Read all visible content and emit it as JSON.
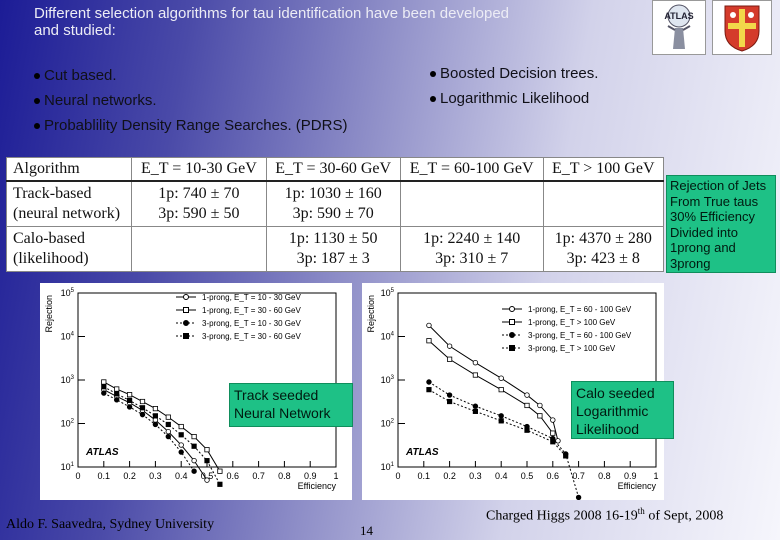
{
  "intro": "Different selection algorithms for tau identification have been developed\nand studied:",
  "bullets_left": [
    "Cut based.",
    "Neural networks.",
    "Probablility Density Range Searches. (PDRS)"
  ],
  "bullets_right": [
    "Boosted Decision trees.",
    "Logarithmic Likelihood"
  ],
  "logos": {
    "atlas_text": "ATLAS"
  },
  "table": {
    "headers": [
      "Algorithm",
      "E_T = 10-30 GeV",
      "E_T = 30-60 GeV",
      "E_T = 60-100 GeV",
      "E_T > 100 GeV"
    ],
    "track_label_1": "Track-based",
    "track_label_2": "(neural network)",
    "track_c1": "1p: 740 ± 70",
    "track_c1b": "3p: 590 ± 50",
    "track_c2": "1p: 1030 ± 160",
    "track_c2b": "3p: 590 ± 70",
    "calo_label_1": "Calo-based",
    "calo_label_2": "(likelihood)",
    "calo_c2": "1p: 1130 ± 50",
    "calo_c2b": "3p: 187 ± 3",
    "calo_c3": "1p: 2240 ± 140",
    "calo_c3b": "3p: 310 ± 7",
    "calo_c4": "1p: 4370 ± 280",
    "calo_c4b": "3p: 423 ± 8"
  },
  "note_rejection": "Rejection of Jets From True taus 30% Efficiency Divided into 1prong and 3prong",
  "plot_left": {
    "ylabel": "Rejection",
    "xlabel": "Efficiency",
    "brand": "ATLAS",
    "legend": [
      "1-prong, E_T = 10 - 30 GeV",
      "1-prong, E_T = 30 - 60 GeV",
      "3-prong, E_T = 10 - 30 GeV",
      "3-prong, E_T = 30 - 60 GeV"
    ],
    "label_box": "Track seeded Neural Network"
  },
  "plot_right": {
    "ylabel": "Rejection",
    "xlabel": "Efficiency",
    "brand": "ATLAS",
    "legend": [
      "1-prong, E_T = 60 - 100 GeV",
      "1-prong, E_T > 100 GeV",
      "3-prong, E_T = 60 - 100 GeV",
      "3-prong, E_T > 100 GeV"
    ],
    "label_box": "Calo seeded Logarithmic Likelihood"
  },
  "footer": {
    "left": "Aldo F. Saavedra, Sydney University",
    "page": "14",
    "right_pre": "Charged Higgs 2008  16-19",
    "right_sup": "th",
    "right_post": " of Sept, 2008"
  },
  "chart_data": [
    {
      "type": "line",
      "xlabel": "Efficiency",
      "ylabel": "Rejection",
      "xlim": [
        0,
        1
      ],
      "ylim": [
        10,
        100000
      ],
      "yscale": "log",
      "series": [
        {
          "name": "1-prong, E_T = 10 - 30 GeV",
          "x": [
            0.1,
            0.15,
            0.2,
            0.25,
            0.3,
            0.35,
            0.4,
            0.45,
            0.5
          ],
          "y": [
            600,
            420,
            300,
            200,
            120,
            65,
            32,
            14,
            5
          ]
        },
        {
          "name": "1-prong, E_T = 30 - 60 GeV",
          "x": [
            0.1,
            0.15,
            0.2,
            0.25,
            0.3,
            0.35,
            0.4,
            0.45,
            0.5,
            0.55
          ],
          "y": [
            900,
            620,
            460,
            320,
            220,
            140,
            85,
            50,
            25,
            8
          ]
        },
        {
          "name": "3-prong, E_T = 10 - 30 GeV",
          "x": [
            0.1,
            0.15,
            0.2,
            0.25,
            0.3,
            0.35,
            0.4,
            0.45
          ],
          "y": [
            500,
            350,
            240,
            160,
            95,
            50,
            22,
            8
          ]
        },
        {
          "name": "3-prong, E_T = 30 - 60 GeV",
          "x": [
            0.1,
            0.15,
            0.2,
            0.25,
            0.3,
            0.35,
            0.4,
            0.45,
            0.5,
            0.55
          ],
          "y": [
            700,
            480,
            340,
            230,
            150,
            95,
            55,
            30,
            14,
            4
          ]
        }
      ]
    },
    {
      "type": "line",
      "xlabel": "Efficiency",
      "ylabel": "Rejection",
      "xlim": [
        0,
        1
      ],
      "ylim": [
        10,
        100000
      ],
      "yscale": "log",
      "series": [
        {
          "name": "1-prong, E_T = 60 - 100 GeV",
          "x": [
            0.12,
            0.2,
            0.3,
            0.4,
            0.5,
            0.55,
            0.6,
            0.62
          ],
          "y": [
            18000,
            6000,
            2500,
            1100,
            450,
            260,
            120,
            40
          ]
        },
        {
          "name": "1-prong, E_T > 100 GeV",
          "x": [
            0.12,
            0.2,
            0.3,
            0.4,
            0.5,
            0.55,
            0.6
          ],
          "y": [
            8000,
            3000,
            1300,
            600,
            260,
            150,
            60
          ]
        },
        {
          "name": "3-prong, E_T = 60 - 100 GeV",
          "x": [
            0.12,
            0.2,
            0.3,
            0.4,
            0.5,
            0.6,
            0.65,
            0.7
          ],
          "y": [
            900,
            450,
            250,
            150,
            85,
            45,
            20,
            2
          ]
        },
        {
          "name": "3-prong, E_T > 100 GeV",
          "x": [
            0.12,
            0.2,
            0.3,
            0.4,
            0.5,
            0.6,
            0.65
          ],
          "y": [
            600,
            320,
            190,
            115,
            70,
            38,
            18
          ]
        }
      ]
    }
  ]
}
